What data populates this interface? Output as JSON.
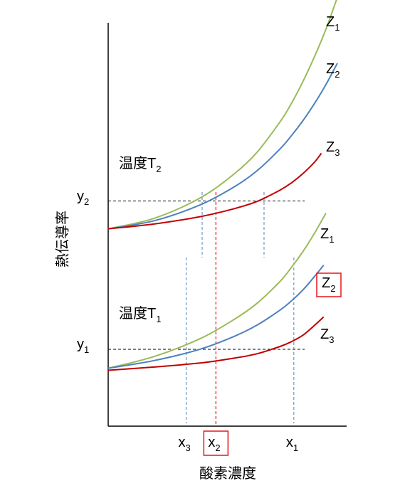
{
  "chart_data": {
    "type": "line",
    "xlabel": "酸素濃度",
    "ylabel": "熱伝導率",
    "xlim": [
      0,
      100
    ],
    "ylim": [
      0,
      100
    ],
    "grid": false,
    "colors": {
      "Z1": "#9bbb59",
      "Z2": "#4f81bd",
      "Z3": "#c00000",
      "ref": "#000000",
      "highlight": "#e8141b"
    },
    "panels": [
      {
        "label_main": "温度T",
        "label_sub": "2",
        "series": [
          {
            "key": "Z1",
            "name_main": "Z",
            "name_sub": "1",
            "x": [
              0,
              20,
              40,
              55,
              65,
              75,
              80,
              85,
              90,
              95,
              100
            ],
            "y": [
              49,
              51.6,
              56.6,
              62.6,
              68.0,
              75.5,
              80.1,
              85.5,
              91.6,
              98.4,
              106.3
            ]
          },
          {
            "key": "Z2",
            "name_main": "Z",
            "name_sub": "2",
            "x": [
              0,
              20,
              40,
              55,
              65,
              75,
              80,
              85,
              90,
              95,
              100
            ],
            "y": [
              49,
              51.0,
              54.9,
              59.4,
              63.4,
              68.8,
              72.1,
              75.8,
              80.0,
              84.7,
              90.0
            ]
          },
          {
            "key": "Z3",
            "name_main": "Z",
            "name_sub": "3",
            "x": [
              0,
              20,
              40,
              55,
              65,
              75,
              80,
              85,
              90,
              93
            ],
            "y": [
              49,
              50.2,
              52.0,
              54.0,
              55.8,
              58.6,
              60.4,
              62.7,
              65.5,
              67.7
            ]
          }
        ],
        "ref_y": 55.9,
        "ref_x": [
          41,
          47,
          68
        ],
        "y_tick": {
          "main": "y",
          "sub": "2",
          "y": 55.9
        }
      },
      {
        "label_main": "温度T",
        "label_sub": "1",
        "series": [
          {
            "key": "Z1",
            "name_main": "Z",
            "name_sub": "1",
            "x": [
              0,
              20,
              40,
              55,
              65,
              75,
              80,
              85,
              90,
              95
            ],
            "y": [
              14.5,
              17.4,
              21.8,
              26.6,
              30.6,
              36.0,
              39.5,
              43.4,
              47.9,
              52.9
            ]
          },
          {
            "key": "Z2",
            "name_main": "Z",
            "name_sub": "2",
            "highlight": true,
            "x": [
              0,
              20,
              40,
              55,
              65,
              75,
              80,
              85,
              90,
              94
            ],
            "y": [
              14.5,
              16.4,
              19.2,
              22.4,
              25.2,
              28.9,
              31.2,
              33.9,
              37.2,
              40.0
            ]
          },
          {
            "key": "Z3",
            "name_main": "Z",
            "name_sub": "3",
            "x": [
              0,
              20,
              40,
              55,
              65,
              75,
              80,
              85,
              90,
              94
            ],
            "y": [
              14.0,
              14.8,
              15.8,
              17.0,
              18.1,
              19.9,
              21.1,
              22.7,
              25.1,
              27.2
            ]
          }
        ],
        "ref_y": 19.2,
        "ref_x": [
          34,
          47,
          81
        ],
        "y_tick": {
          "main": "y",
          "sub": "1",
          "y": 19.2
        }
      }
    ],
    "x_ticks": [
      {
        "main": "x",
        "sub": "3",
        "x": 34
      },
      {
        "main": "x",
        "sub": "2",
        "x": 47,
        "highlight": true
      },
      {
        "main": "x",
        "sub": "1",
        "x": 81
      }
    ]
  }
}
